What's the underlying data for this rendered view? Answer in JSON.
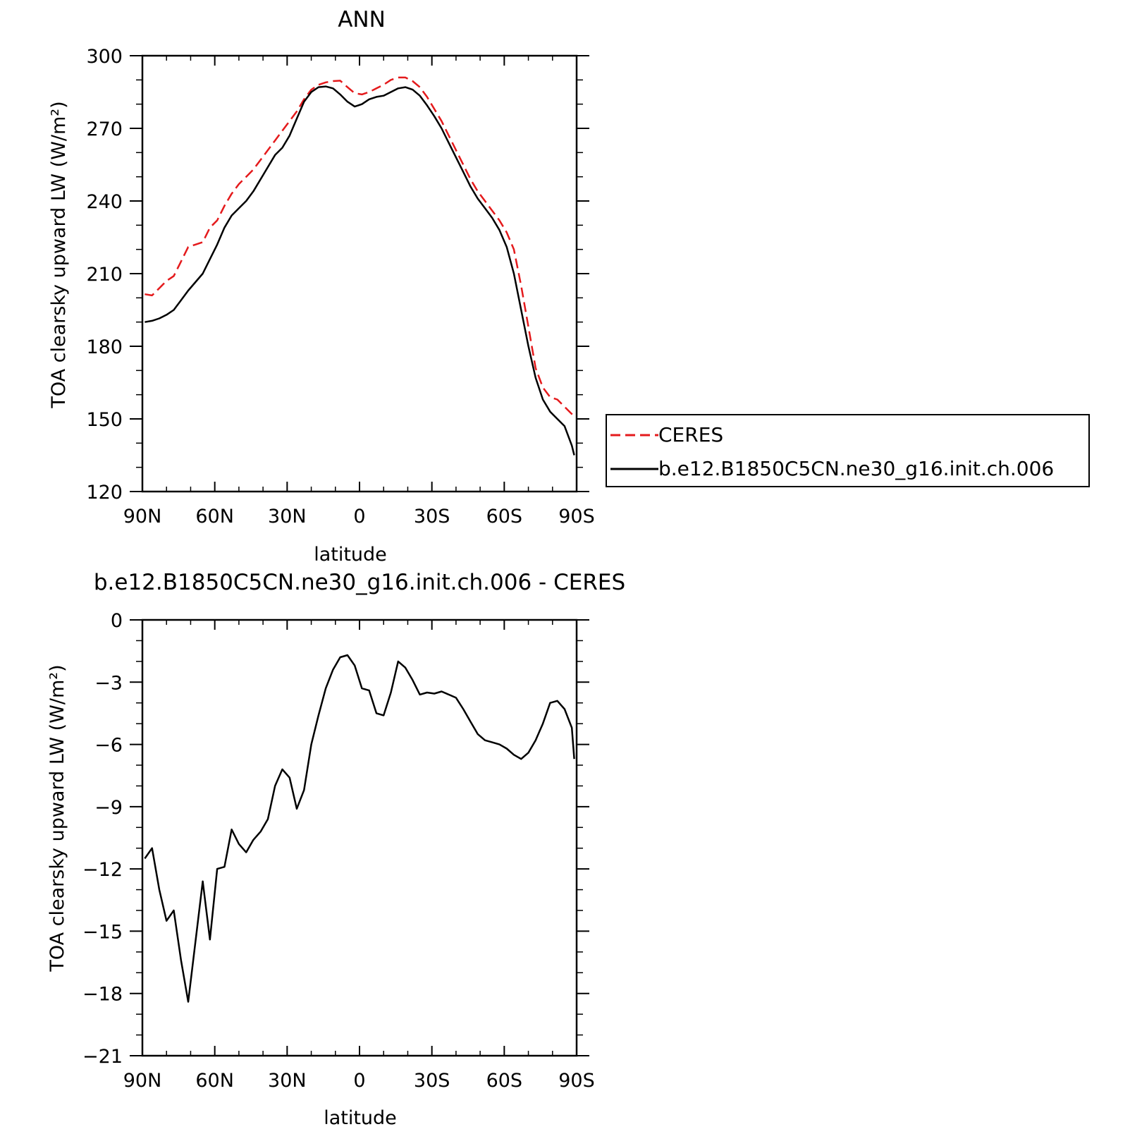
{
  "chart_data": [
    {
      "type": "line",
      "title": "ANN",
      "xlabel": "latitude",
      "ylabel": "TOA clearsky upward LW (W/m²)",
      "x_ticks": [
        "90N",
        "60N",
        "30N",
        "0",
        "30S",
        "60S",
        "90S"
      ],
      "y_ticks": [
        "300",
        "270",
        "240",
        "210",
        "180",
        "150",
        "120"
      ],
      "xlim": [
        90,
        -90
      ],
      "ylim": [
        120,
        300
      ],
      "grid": false,
      "legend": "right",
      "legend_entries": [
        "CERES",
        "b.e12.B1850C5CN.ne30_g16.init.ch.006"
      ],
      "series": [
        {
          "name": "CERES",
          "color": "#e41a1c",
          "dash": "dashed",
          "x": [
            89,
            86,
            83,
            80,
            77,
            74,
            71,
            68,
            65,
            62,
            59,
            56,
            53,
            50,
            47,
            44,
            41,
            38,
            35,
            32,
            29,
            26,
            23,
            20,
            17,
            14,
            11,
            8,
            5,
            2,
            -1,
            -4,
            -7,
            -10,
            -13,
            -16,
            -19,
            -22,
            -25,
            -28,
            -31,
            -34,
            -37,
            -40,
            -43,
            -46,
            -49,
            -52,
            -55,
            -58,
            -61,
            -64,
            -67,
            -70,
            -73,
            -76,
            -79,
            -82,
            -85,
            -88,
            -89
          ],
          "y": [
            201.5,
            201,
            204,
            207,
            209,
            215,
            221,
            222,
            223,
            229,
            232,
            238,
            243,
            247,
            250,
            253,
            257,
            261,
            265,
            269,
            273,
            277,
            282,
            286,
            288,
            289,
            289.5,
            289.7,
            287,
            284.5,
            284,
            285,
            286.5,
            288,
            290,
            291,
            291,
            289.5,
            287,
            283,
            278,
            273,
            267,
            261,
            255,
            249,
            244,
            240,
            236,
            232,
            227,
            220,
            205,
            188,
            171,
            163,
            159,
            158,
            155,
            152,
            151
          ]
        },
        {
          "name": "b.e12.B1850C5CN.ne30_g16.init.ch.006",
          "color": "#000000",
          "dash": "solid",
          "x": [
            89,
            86,
            83,
            80,
            77,
            74,
            71,
            68,
            65,
            62,
            59,
            56,
            53,
            50,
            47,
            44,
            41,
            38,
            35,
            32,
            29,
            26,
            23,
            20,
            17,
            14,
            11,
            8,
            5,
            2,
            -1,
            -4,
            -7,
            -10,
            -13,
            -16,
            -19,
            -22,
            -25,
            -28,
            -31,
            -34,
            -37,
            -40,
            -43,
            -46,
            -49,
            -52,
            -55,
            -58,
            -61,
            -64,
            -67,
            -70,
            -73,
            -76,
            -79,
            -82,
            -85,
            -88,
            -89
          ],
          "y": [
            190,
            190.5,
            191.5,
            193,
            195,
            199,
            203,
            206.5,
            210,
            216,
            222,
            229,
            234,
            237,
            240,
            244,
            249,
            254,
            259,
            262,
            267,
            274,
            281,
            285,
            287,
            287.3,
            286.5,
            284,
            281,
            279,
            280,
            282,
            283,
            283.5,
            285,
            286.5,
            287,
            286,
            283.5,
            279.5,
            275,
            270,
            264,
            258,
            252,
            246,
            241,
            237,
            233,
            228,
            221,
            210,
            195,
            180,
            167,
            158,
            153,
            150,
            147,
            139,
            135
          ]
        }
      ]
    },
    {
      "type": "line",
      "title": "b.e12.B1850C5CN.ne30_g16.init.ch.006 - CERES",
      "xlabel": "latitude",
      "ylabel": "TOA clearsky upward LW (W/m²)",
      "x_ticks": [
        "90N",
        "60N",
        "30N",
        "0",
        "30S",
        "60S",
        "90S"
      ],
      "y_ticks": [
        "0",
        "-3",
        "-6",
        "-9",
        "-12",
        "-15",
        "-18",
        "-21"
      ],
      "xlim": [
        90,
        -90
      ],
      "ylim": [
        -21,
        0
      ],
      "grid": false,
      "series": [
        {
          "color": "#000000",
          "dash": "solid",
          "x": [
            89,
            86,
            83,
            80,
            77,
            74,
            71,
            68,
            65,
            62,
            59,
            56,
            53,
            50,
            47,
            44,
            41,
            38,
            35,
            32,
            29,
            26,
            23,
            20,
            17,
            14,
            11,
            8,
            5,
            2,
            -1,
            -4,
            -7,
            -10,
            -13,
            -16,
            -19,
            -22,
            -25,
            -28,
            -31,
            -34,
            -37,
            -40,
            -43,
            -46,
            -49,
            -52,
            -55,
            -58,
            -61,
            -64,
            -67,
            -70,
            -73,
            -76,
            -79,
            -82,
            -85,
            -88,
            -89
          ],
          "y": [
            -11.5,
            -11,
            -13,
            -14.5,
            -14,
            -16.4,
            -18.4,
            -15.5,
            -12.6,
            -15.4,
            -12.0,
            -11.9,
            -10.1,
            -10.8,
            -11.2,
            -10.6,
            -10.2,
            -9.6,
            -8,
            -7.2,
            -7.6,
            -9.1,
            -8.2,
            -6,
            -4.6,
            -3.3,
            -2.4,
            -1.8,
            -1.7,
            -2.2,
            -3.3,
            -3.4,
            -4.5,
            -4.6,
            -3.5,
            -2.0,
            -2.3,
            -2.9,
            -3.6,
            -3.5,
            -3.55,
            -3.45,
            -3.6,
            -3.75,
            -4.3,
            -4.9,
            -5.5,
            -5.8,
            -5.9,
            -6.0,
            -6.2,
            -6.5,
            -6.7,
            -6.4,
            -5.8,
            -5.0,
            -4.0,
            -3.9,
            -4.3,
            -5.2,
            -6.7
          ]
        }
      ]
    }
  ]
}
